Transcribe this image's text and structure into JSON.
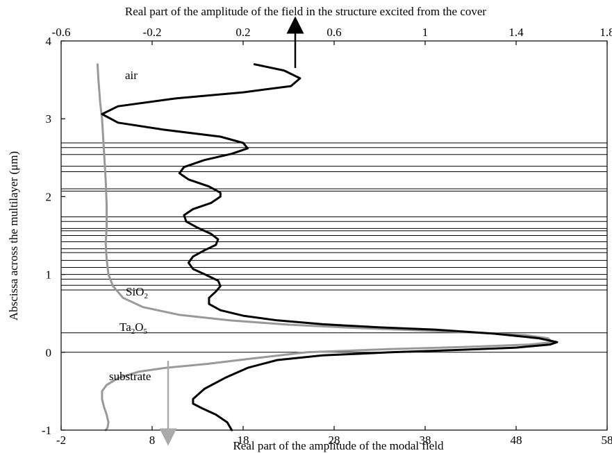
{
  "chart_data": {
    "type": "line",
    "title_top_axis": "Real part of the amplitude of the field in the structure excited from the cover",
    "xlabel_bottom": "Real part of the amplitude of the modal field",
    "ylabel": "Abscissa across the multilayer (μm)",
    "x_bottom": {
      "min": -2,
      "max": 58,
      "ticks": [
        "-2",
        "8",
        "18",
        "28",
        "38",
        "48",
        "58"
      ]
    },
    "x_top": {
      "min": -0.6,
      "max": 1.8,
      "ticks": [
        "-0.6",
        "-0.2",
        "0.2",
        "0.6",
        "1",
        "1.4",
        "1.8"
      ]
    },
    "y": {
      "min": -1,
      "max": 4,
      "ticks": [
        "-1",
        "0",
        "1",
        "2",
        "3",
        "4"
      ]
    },
    "layer_boundaries_um": [
      0,
      0.25,
      0.8,
      0.86,
      0.94,
      1.0,
      1.09,
      1.18,
      1.28,
      1.33,
      1.42,
      1.5,
      1.56,
      1.59,
      1.68,
      1.74,
      2.07,
      2.1,
      2.32,
      2.39,
      2.54,
      2.63,
      2.69
    ],
    "annotations": {
      "air": "air",
      "sio2_base": "SiO",
      "sio2_sub": "2",
      "ta2o5_a": "Ta",
      "ta2o5_sub1": "2",
      "ta2o5_b": "O",
      "ta2o5_sub2": "5",
      "substrate": "substrate"
    },
    "series": [
      {
        "axis": "bottom",
        "color": "#999999",
        "points": [
          [
            2.0,
            3.7
          ],
          [
            2.1,
            3.5
          ],
          [
            2.3,
            3.2
          ],
          [
            2.5,
            3.0
          ],
          [
            2.7,
            2.6
          ],
          [
            2.9,
            2.2
          ],
          [
            3.0,
            1.9
          ],
          [
            3.0,
            1.6
          ],
          [
            2.9,
            1.4
          ],
          [
            3.0,
            1.2
          ],
          [
            3.2,
            1.0
          ],
          [
            3.7,
            0.85
          ],
          [
            4.8,
            0.7
          ],
          [
            7.0,
            0.58
          ],
          [
            11.0,
            0.48
          ],
          [
            16.5,
            0.41
          ],
          [
            23.0,
            0.355
          ],
          [
            30.0,
            0.315
          ],
          [
            37.5,
            0.28
          ],
          [
            44.0,
            0.25
          ],
          [
            49.0,
            0.22
          ],
          [
            51.5,
            0.18
          ],
          [
            52.0,
            0.13
          ],
          [
            49.5,
            0.1
          ],
          [
            43.0,
            0.07
          ],
          [
            34.0,
            0.04
          ],
          [
            25.0,
            0.0
          ],
          [
            19.0,
            -0.08
          ],
          [
            14.0,
            -0.15
          ],
          [
            9.5,
            -0.2
          ],
          [
            6.5,
            -0.25
          ],
          [
            4.3,
            -0.33
          ],
          [
            3.0,
            -0.42
          ],
          [
            2.5,
            -0.5
          ],
          [
            2.5,
            -0.6
          ],
          [
            2.7,
            -0.7
          ],
          [
            3.0,
            -0.8
          ],
          [
            3.2,
            -0.9
          ],
          [
            3.1,
            -0.97
          ],
          [
            2.9,
            -1.0
          ]
        ]
      },
      {
        "axis": "top",
        "color": "#000000",
        "points": [
          [
            0.25,
            3.7
          ],
          [
            0.38,
            3.62
          ],
          [
            0.45,
            3.52
          ],
          [
            0.41,
            3.42
          ],
          [
            0.2,
            3.34
          ],
          [
            -0.1,
            3.26
          ],
          [
            -0.35,
            3.16
          ],
          [
            -0.42,
            3.06
          ],
          [
            -0.35,
            2.95
          ],
          [
            -0.15,
            2.86
          ],
          [
            0.1,
            2.77
          ],
          [
            0.2,
            2.69
          ],
          [
            0.22,
            2.62
          ],
          [
            0.15,
            2.55
          ],
          [
            0.03,
            2.47
          ],
          [
            -0.06,
            2.38
          ],
          [
            -0.08,
            2.3
          ],
          [
            -0.04,
            2.22
          ],
          [
            0.05,
            2.13
          ],
          [
            0.1,
            2.05
          ],
          [
            0.1,
            2.0
          ],
          [
            0.06,
            1.92
          ],
          [
            -0.02,
            1.84
          ],
          [
            -0.06,
            1.76
          ],
          [
            -0.05,
            1.68
          ],
          [
            0.0,
            1.6
          ],
          [
            0.06,
            1.52
          ],
          [
            0.09,
            1.45
          ],
          [
            0.08,
            1.38
          ],
          [
            0.03,
            1.31
          ],
          [
            -0.02,
            1.23
          ],
          [
            -0.04,
            1.15
          ],
          [
            -0.02,
            1.07
          ],
          [
            0.04,
            0.99
          ],
          [
            0.09,
            0.92
          ],
          [
            0.1,
            0.85
          ],
          [
            0.08,
            0.78
          ],
          [
            0.05,
            0.7
          ],
          [
            0.05,
            0.62
          ],
          [
            0.1,
            0.54
          ],
          [
            0.2,
            0.47
          ],
          [
            0.35,
            0.41
          ],
          [
            0.55,
            0.36
          ],
          [
            0.8,
            0.32
          ],
          [
            1.05,
            0.29
          ],
          [
            1.3,
            0.24
          ],
          [
            1.5,
            0.18
          ],
          [
            1.58,
            0.13
          ],
          [
            1.55,
            0.1
          ],
          [
            1.4,
            0.06
          ],
          [
            1.15,
            0.03
          ],
          [
            0.85,
            0.0
          ],
          [
            0.55,
            -0.04
          ],
          [
            0.35,
            -0.1
          ],
          [
            0.22,
            -0.2
          ],
          [
            0.12,
            -0.33
          ],
          [
            0.03,
            -0.47
          ],
          [
            -0.02,
            -0.6
          ],
          [
            -0.02,
            -0.66
          ],
          [
            0.02,
            -0.72
          ],
          [
            0.08,
            -0.8
          ],
          [
            0.13,
            -0.9
          ],
          [
            0.15,
            -1.0
          ]
        ]
      }
    ]
  }
}
